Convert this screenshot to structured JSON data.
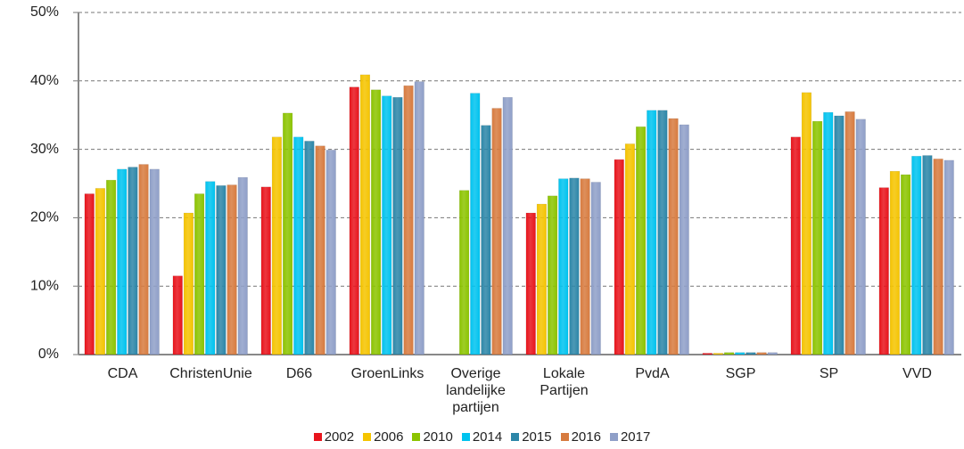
{
  "chart_data": {
    "type": "bar",
    "categories": [
      "CDA",
      "ChristenUnie",
      "D66",
      "GroenLinks",
      "Overige landelijke partijen",
      "Lokale Partijen",
      "PvdA",
      "SGP",
      "SP",
      "VVD"
    ],
    "series": [
      {
        "name": "2002",
        "color": "#e8141c",
        "values": [
          23.5,
          11.5,
          24.5,
          39.1,
          null,
          20.7,
          28.5,
          0.2,
          31.8,
          24.4
        ]
      },
      {
        "name": "2006",
        "color": "#f5c400",
        "values": [
          24.3,
          20.7,
          31.8,
          40.9,
          null,
          22.0,
          30.8,
          0.2,
          38.3,
          26.8
        ]
      },
      {
        "name": "2010",
        "color": "#8cc400",
        "values": [
          25.5,
          23.5,
          35.3,
          38.7,
          24.0,
          23.2,
          33.3,
          0.3,
          34.1,
          26.3
        ]
      },
      {
        "name": "2014",
        "color": "#00c3ef",
        "values": [
          27.1,
          25.3,
          31.8,
          37.8,
          38.2,
          25.7,
          35.7,
          0.3,
          35.4,
          29.0
        ]
      },
      {
        "name": "2015",
        "color": "#2c86a8",
        "values": [
          27.4,
          24.7,
          31.2,
          37.6,
          33.5,
          25.8,
          35.7,
          0.3,
          34.9,
          29.1
        ]
      },
      {
        "name": "2016",
        "color": "#d77b3f",
        "values": [
          27.8,
          24.8,
          30.5,
          39.3,
          36.0,
          25.7,
          34.5,
          0.3,
          35.5,
          28.6
        ]
      },
      {
        "name": "2017",
        "color": "#8f9fc8",
        "values": [
          27.1,
          25.9,
          29.9,
          39.9,
          37.6,
          25.2,
          33.6,
          0.3,
          34.4,
          28.4
        ]
      }
    ],
    "ylim": [
      0,
      50
    ],
    "yticks": [
      {
        "value": 0,
        "label": "0%"
      },
      {
        "value": 10,
        "label": "10%"
      },
      {
        "value": 20,
        "label": "20%"
      },
      {
        "value": 30,
        "label": "30%"
      },
      {
        "value": 40,
        "label": "40%"
      },
      {
        "value": 50,
        "label": "50%"
      }
    ],
    "grid": true,
    "legend": "bottom"
  }
}
